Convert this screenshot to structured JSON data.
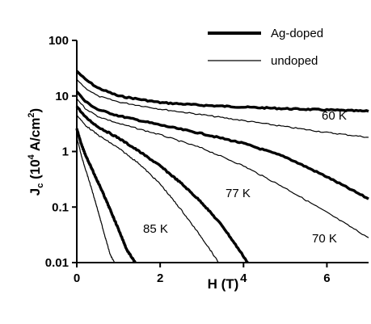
{
  "chart_data": {
    "type": "line",
    "xlabel": "H (T)",
    "ylabel_main": "J",
    "ylabel_sub": "c",
    "ylabel_units_open": " (10",
    "ylabel_exp": "4",
    "ylabel_units_mid": " A/cm",
    "ylabel_units_exp": "2",
    "ylabel_units_close": ")",
    "xlim": [
      0,
      7
    ],
    "ylim": [
      0.01,
      100
    ],
    "yscale": "log",
    "x_ticks": [
      0,
      2,
      4,
      6
    ],
    "x_tick_labels": [
      "0",
      "2",
      "4",
      "6"
    ],
    "y_ticks": [
      0.01,
      0.1,
      1,
      10,
      100
    ],
    "y_tick_labels": [
      "0.01",
      "0.1",
      "1",
      "10",
      "100"
    ],
    "grid": false,
    "legend_position": "top-right",
    "legend": [
      {
        "label": "Ag-doped",
        "style": "thick"
      },
      {
        "label": "undoped",
        "style": "thin"
      }
    ],
    "temperature_labels": [
      "60 K",
      "70 K",
      "77 K",
      "85 K"
    ],
    "series": [
      {
        "temperature": "60 K",
        "doping": "Ag-doped",
        "style": "thick",
        "x": [
          0,
          0.2,
          0.5,
          1,
          2,
          3,
          4,
          5,
          6,
          7
        ],
        "y": [
          28,
          20,
          14,
          10,
          7.6,
          6.8,
          6.3,
          5.9,
          5.6,
          5.3
        ]
      },
      {
        "temperature": "60 K",
        "doping": "undoped",
        "style": "thin",
        "x": [
          0,
          0.2,
          0.5,
          1,
          2,
          3,
          4,
          5,
          6,
          7
        ],
        "y": [
          20,
          14,
          10,
          7.8,
          5.8,
          4.6,
          3.6,
          2.8,
          2.2,
          1.8
        ]
      },
      {
        "temperature": "70 K",
        "doping": "Ag-doped",
        "style": "thick",
        "x": [
          0,
          0.2,
          0.5,
          1,
          2,
          3,
          4,
          5,
          6,
          7
        ],
        "y": [
          12,
          8,
          5.7,
          4.4,
          3.0,
          2.1,
          1.4,
          0.8,
          0.35,
          0.14
        ]
      },
      {
        "temperature": "70 K",
        "doping": "undoped",
        "style": "thin",
        "x": [
          0,
          0.2,
          0.5,
          1,
          2,
          3,
          4,
          5,
          6,
          7
        ],
        "y": [
          9,
          6,
          4.3,
          3.2,
          2.0,
          1.15,
          0.55,
          0.22,
          0.08,
          0.028
        ]
      },
      {
        "temperature": "77 K",
        "doping": "Ag-doped",
        "style": "thick",
        "x": [
          0,
          0.2,
          0.5,
          1,
          1.5,
          2,
          2.5,
          3,
          3.5,
          4,
          4.1
        ],
        "y": [
          6.5,
          4.2,
          2.8,
          1.75,
          1.0,
          0.55,
          0.27,
          0.12,
          0.045,
          0.013,
          0.01
        ]
      },
      {
        "temperature": "77 K",
        "doping": "undoped",
        "style": "thin",
        "x": [
          0,
          0.2,
          0.5,
          1,
          1.5,
          2,
          2.5,
          3,
          3.2,
          3.4
        ],
        "y": [
          4.5,
          3.0,
          2.0,
          1.15,
          0.6,
          0.26,
          0.09,
          0.028,
          0.017,
          0.01
        ]
      },
      {
        "temperature": "85 K",
        "doping": "Ag-doped",
        "style": "thick",
        "x": [
          0,
          0.1,
          0.2,
          0.4,
          0.6,
          0.8,
          1.0,
          1.2,
          1.4
        ],
        "y": [
          2.6,
          1.4,
          0.9,
          0.42,
          0.2,
          0.09,
          0.04,
          0.017,
          0.01
        ]
      },
      {
        "temperature": "85 K",
        "doping": "undoped",
        "style": "thin",
        "x": [
          0,
          0.1,
          0.2,
          0.35,
          0.5,
          0.65,
          0.8,
          0.9
        ],
        "y": [
          1.8,
          0.9,
          0.5,
          0.22,
          0.09,
          0.035,
          0.014,
          0.01
        ]
      }
    ]
  }
}
